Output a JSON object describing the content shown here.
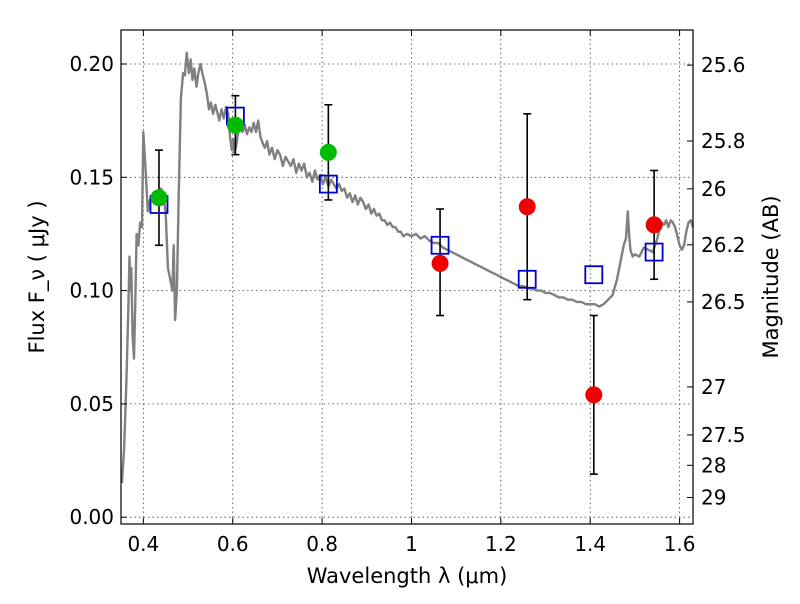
{
  "chart_data": {
    "type": "scatter",
    "xlabel": "Wavelength  λ (μm)",
    "ylabel": "Flux  F_ν  ( μJy )",
    "right_ylabel": "Magnitude (AB)",
    "xlim": [
      0.35,
      1.63
    ],
    "ylim": [
      -0.003,
      0.215
    ],
    "grid": true,
    "x_ticks": [
      {
        "value": 0.4,
        "label": "0.4"
      },
      {
        "value": 0.6,
        "label": "0.6"
      },
      {
        "value": 0.8,
        "label": "0.8"
      },
      {
        "value": 1.0,
        "label": "1"
      },
      {
        "value": 1.2,
        "label": "1.2"
      },
      {
        "value": 1.4,
        "label": "1.4"
      },
      {
        "value": 1.6,
        "label": "1.6"
      }
    ],
    "y_ticks": [
      {
        "value": 0.0,
        "label": "0.00"
      },
      {
        "value": 0.05,
        "label": "0.05"
      },
      {
        "value": 0.1,
        "label": "0.10"
      },
      {
        "value": 0.15,
        "label": "0.15"
      },
      {
        "value": 0.2,
        "label": "0.20"
      }
    ],
    "right_ticks": [
      {
        "flux": 0.1995,
        "label": "25.6"
      },
      {
        "flux": 0.166,
        "label": "25.8"
      },
      {
        "flux": 0.1449,
        "label": "26"
      },
      {
        "flux": 0.1202,
        "label": "26.2"
      },
      {
        "flux": 0.095,
        "label": "26.5"
      },
      {
        "flux": 0.0575,
        "label": "27"
      },
      {
        "flux": 0.0363,
        "label": "27.5"
      },
      {
        "flux": 0.0229,
        "label": "28"
      },
      {
        "flux": 0.0087,
        "label": "29"
      }
    ],
    "series": [
      {
        "type": "line",
        "color": "#808080",
        "points": [
          [
            0.352,
            0.015
          ],
          [
            0.357,
            0.03
          ],
          [
            0.362,
            0.06
          ],
          [
            0.366,
            0.09
          ],
          [
            0.369,
            0.115
          ],
          [
            0.371,
            0.1
          ],
          [
            0.373,
            0.11
          ],
          [
            0.376,
            0.08
          ],
          [
            0.379,
            0.07
          ],
          [
            0.382,
            0.095
          ],
          [
            0.385,
            0.125
          ],
          [
            0.389,
            0.12
          ],
          [
            0.393,
            0.13
          ],
          [
            0.397,
            0.128
          ],
          [
            0.4,
            0.17
          ],
          [
            0.403,
            0.16
          ],
          [
            0.406,
            0.15
          ],
          [
            0.41,
            0.135
          ],
          [
            0.415,
            0.14
          ],
          [
            0.42,
            0.142
          ],
          [
            0.425,
            0.14
          ],
          [
            0.43,
            0.143
          ],
          [
            0.435,
            0.14
          ],
          [
            0.44,
            0.145
          ],
          [
            0.445,
            0.142
          ],
          [
            0.45,
            0.134
          ],
          [
            0.455,
            0.11
          ],
          [
            0.46,
            0.105
          ],
          [
            0.465,
            0.1
          ],
          [
            0.468,
            0.12
          ],
          [
            0.471,
            0.087
          ],
          [
            0.475,
            0.1
          ],
          [
            0.479,
            0.14
          ],
          [
            0.484,
            0.185
          ],
          [
            0.489,
            0.196
          ],
          [
            0.493,
            0.195
          ],
          [
            0.497,
            0.205
          ],
          [
            0.502,
            0.196
          ],
          [
            0.506,
            0.202
          ],
          [
            0.51,
            0.193
          ],
          [
            0.514,
            0.198
          ],
          [
            0.519,
            0.19
          ],
          [
            0.523,
            0.196
          ],
          [
            0.528,
            0.2
          ],
          [
            0.533,
            0.195
          ],
          [
            0.537,
            0.192
          ],
          [
            0.542,
            0.187
          ],
          [
            0.547,
            0.18
          ],
          [
            0.551,
            0.183
          ],
          [
            0.556,
            0.178
          ],
          [
            0.561,
            0.182
          ],
          [
            0.565,
            0.179
          ],
          [
            0.57,
            0.175
          ],
          [
            0.575,
            0.18
          ],
          [
            0.58,
            0.176
          ],
          [
            0.585,
            0.181
          ],
          [
            0.59,
            0.178
          ],
          [
            0.594,
            0.168
          ],
          [
            0.598,
            0.162
          ],
          [
            0.601,
            0.167
          ],
          [
            0.604,
            0.161
          ],
          [
            0.608,
            0.164
          ],
          [
            0.612,
            0.17
          ],
          [
            0.617,
            0.173
          ],
          [
            0.622,
            0.17
          ],
          [
            0.627,
            0.173
          ],
          [
            0.632,
            0.169
          ],
          [
            0.637,
            0.172
          ],
          [
            0.642,
            0.17
          ],
          [
            0.647,
            0.174
          ],
          [
            0.652,
            0.17
          ],
          [
            0.657,
            0.175
          ],
          [
            0.662,
            0.168
          ],
          [
            0.667,
            0.165
          ],
          [
            0.672,
            0.163
          ],
          [
            0.677,
            0.166
          ],
          [
            0.682,
            0.16
          ],
          [
            0.688,
            0.163
          ],
          [
            0.694,
            0.158
          ],
          [
            0.7,
            0.162
          ],
          [
            0.706,
            0.16
          ],
          [
            0.712,
            0.155
          ],
          [
            0.718,
            0.159
          ],
          [
            0.724,
            0.157
          ],
          [
            0.73,
            0.155
          ],
          [
            0.736,
            0.158
          ],
          [
            0.742,
            0.152
          ],
          [
            0.748,
            0.156
          ],
          [
            0.754,
            0.153
          ],
          [
            0.76,
            0.156
          ],
          [
            0.766,
            0.15
          ],
          [
            0.772,
            0.152
          ],
          [
            0.778,
            0.148
          ],
          [
            0.784,
            0.153
          ],
          [
            0.79,
            0.149
          ],
          [
            0.796,
            0.151
          ],
          [
            0.802,
            0.147
          ],
          [
            0.808,
            0.15
          ],
          [
            0.814,
            0.146
          ],
          [
            0.82,
            0.149
          ],
          [
            0.826,
            0.147
          ],
          [
            0.832,
            0.145
          ],
          [
            0.838,
            0.147
          ],
          [
            0.844,
            0.144
          ],
          [
            0.85,
            0.145
          ],
          [
            0.856,
            0.141
          ],
          [
            0.862,
            0.143
          ],
          [
            0.868,
            0.139
          ],
          [
            0.874,
            0.142
          ],
          [
            0.88,
            0.138
          ],
          [
            0.886,
            0.141
          ],
          [
            0.892,
            0.139
          ],
          [
            0.898,
            0.136
          ],
          [
            0.904,
            0.138
          ],
          [
            0.91,
            0.134
          ],
          [
            0.916,
            0.136
          ],
          [
            0.922,
            0.133
          ],
          [
            0.928,
            0.134
          ],
          [
            0.934,
            0.131
          ],
          [
            0.94,
            0.131
          ],
          [
            0.946,
            0.129
          ],
          [
            0.952,
            0.13
          ],
          [
            0.958,
            0.128
          ],
          [
            0.964,
            0.128
          ],
          [
            0.97,
            0.126
          ],
          [
            0.976,
            0.126
          ],
          [
            0.982,
            0.124
          ],
          [
            0.99,
            0.125
          ],
          [
            1.0,
            0.124
          ],
          [
            1.01,
            0.125
          ],
          [
            1.02,
            0.123
          ],
          [
            1.03,
            0.124
          ],
          [
            1.04,
            0.122
          ],
          [
            1.05,
            0.121
          ],
          [
            1.06,
            0.121
          ],
          [
            1.07,
            0.119
          ],
          [
            1.08,
            0.118
          ],
          [
            1.09,
            0.117
          ],
          [
            1.1,
            0.116
          ],
          [
            1.11,
            0.115
          ],
          [
            1.12,
            0.114
          ],
          [
            1.13,
            0.113
          ],
          [
            1.14,
            0.112
          ],
          [
            1.15,
            0.111
          ],
          [
            1.16,
            0.11
          ],
          [
            1.17,
            0.109
          ],
          [
            1.18,
            0.108
          ],
          [
            1.19,
            0.107
          ],
          [
            1.2,
            0.106
          ],
          [
            1.21,
            0.105
          ],
          [
            1.22,
            0.104
          ],
          [
            1.23,
            0.103
          ],
          [
            1.24,
            0.102
          ],
          [
            1.25,
            0.102
          ],
          [
            1.26,
            0.101
          ],
          [
            1.27,
            0.101
          ],
          [
            1.28,
            0.1
          ],
          [
            1.29,
            0.1
          ],
          [
            1.3,
            0.099
          ],
          [
            1.31,
            0.099
          ],
          [
            1.32,
            0.098
          ],
          [
            1.33,
            0.097
          ],
          [
            1.34,
            0.097
          ],
          [
            1.35,
            0.096
          ],
          [
            1.36,
            0.096
          ],
          [
            1.37,
            0.095
          ],
          [
            1.38,
            0.095
          ],
          [
            1.39,
            0.094
          ],
          [
            1.4,
            0.094
          ],
          [
            1.41,
            0.094
          ],
          [
            1.42,
            0.093
          ],
          [
            1.43,
            0.094
          ],
          [
            1.44,
            0.096
          ],
          [
            1.45,
            0.098
          ],
          [
            1.46,
            0.105
          ],
          [
            1.47,
            0.115
          ],
          [
            1.475,
            0.12
          ],
          [
            1.48,
            0.123
          ],
          [
            1.484,
            0.135
          ],
          [
            1.487,
            0.125
          ],
          [
            1.49,
            0.118
          ],
          [
            1.495,
            0.115
          ],
          [
            1.5,
            0.116
          ],
          [
            1.51,
            0.115
          ],
          [
            1.52,
            0.119
          ],
          [
            1.53,
            0.118
          ],
          [
            1.54,
            0.117
          ],
          [
            1.545,
            0.12
          ],
          [
            1.55,
            0.123
          ],
          [
            1.555,
            0.127
          ],
          [
            1.56,
            0.13
          ],
          [
            1.565,
            0.129
          ],
          [
            1.57,
            0.131
          ],
          [
            1.575,
            0.128
          ],
          [
            1.58,
            0.131
          ],
          [
            1.585,
            0.13
          ],
          [
            1.59,
            0.128
          ],
          [
            1.595,
            0.124
          ],
          [
            1.6,
            0.12
          ],
          [
            1.605,
            0.118
          ],
          [
            1.61,
            0.12
          ],
          [
            1.615,
            0.126
          ],
          [
            1.62,
            0.13
          ],
          [
            1.625,
            0.131
          ],
          [
            1.63,
            0.128
          ]
        ]
      },
      {
        "type": "errorbar",
        "color": "#000000",
        "points": [
          {
            "x": 0.435,
            "low": 0.12,
            "high": 0.162
          },
          {
            "x": 0.606,
            "low": 0.16,
            "high": 0.186
          },
          {
            "x": 0.814,
            "low": 0.14,
            "high": 0.182
          },
          {
            "x": 1.064,
            "low": 0.089,
            "high": 0.136
          },
          {
            "x": 1.259,
            "low": 0.096,
            "high": 0.178
          },
          {
            "x": 1.408,
            "low": 0.019,
            "high": 0.089
          },
          {
            "x": 1.543,
            "low": 0.105,
            "high": 0.153
          }
        ]
      },
      {
        "type": "marker-square-open",
        "color": "#0000cc",
        "points": [
          [
            0.435,
            0.138
          ],
          [
            0.606,
            0.177
          ],
          [
            0.814,
            0.147
          ],
          [
            1.064,
            0.12
          ],
          [
            1.259,
            0.105
          ],
          [
            1.408,
            0.107
          ],
          [
            1.543,
            0.117
          ]
        ]
      },
      {
        "type": "marker-circle",
        "color": "#00bb00",
        "points": [
          [
            0.435,
            0.141
          ],
          [
            0.606,
            0.173
          ],
          [
            0.814,
            0.161
          ]
        ]
      },
      {
        "type": "marker-circle",
        "color": "#ee0000",
        "points": [
          [
            1.064,
            0.112
          ],
          [
            1.259,
            0.137
          ],
          [
            1.408,
            0.054
          ],
          [
            1.543,
            0.129
          ]
        ]
      }
    ]
  }
}
